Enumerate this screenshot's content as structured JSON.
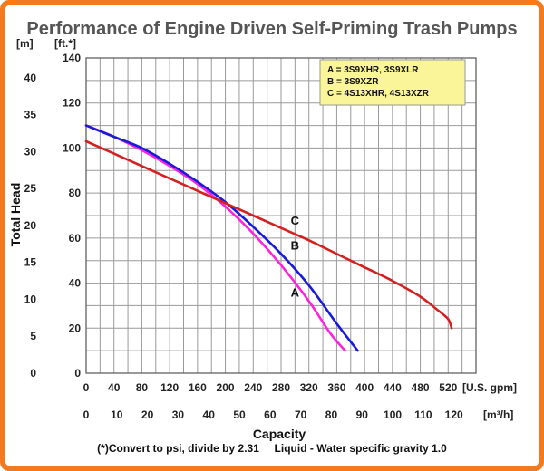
{
  "chart_data": {
    "type": "line",
    "title": "Performance of Engine Driven Self-Priming Trash Pumps",
    "ylabel": "Total Head",
    "xlabel": "Capacity",
    "y_unit_left": "[m]",
    "y_unit_right": "[ft.*]",
    "x_unit_top": "[U.S. gpm]",
    "x_unit_bottom": "[m³/h]",
    "ylim_ft": [
      0,
      140
    ],
    "yticks_ft": [
      "0",
      "20",
      "40",
      "60",
      "80",
      "100",
      "120",
      "140"
    ],
    "yticks_m": [
      "0",
      "5",
      "10",
      "15",
      "20",
      "25",
      "30",
      "35",
      "40"
    ],
    "xlim_gpm": [
      0,
      560
    ],
    "xticks_gpm": [
      "0",
      "40",
      "80",
      "120",
      "160",
      "200",
      "240",
      "280",
      "320",
      "360",
      "400",
      "440",
      "480",
      "520"
    ],
    "xticks_m3h": [
      "0",
      "10",
      "20",
      "30",
      "40",
      "50",
      "60",
      "70",
      "80",
      "90",
      "100",
      "110",
      "120"
    ],
    "grid": true,
    "legend": {
      "placement": "top-right",
      "entries": [
        "A = 3S9XHR, 3S9XLR",
        "B = 3S9XZR",
        "C = 4S13XHR, 4S13XZR"
      ]
    },
    "series": [
      {
        "name": "A",
        "color": "#ff22dd",
        "points": [
          [
            0,
            110
          ],
          [
            40,
            105
          ],
          [
            80,
            99
          ],
          [
            120,
            92
          ],
          [
            160,
            84
          ],
          [
            200,
            74
          ],
          [
            240,
            62
          ],
          [
            280,
            48
          ],
          [
            320,
            32
          ],
          [
            350,
            18
          ],
          [
            372,
            10
          ]
        ]
      },
      {
        "name": "B",
        "color": "#1a1adb",
        "points": [
          [
            0,
            110
          ],
          [
            40,
            105
          ],
          [
            80,
            100
          ],
          [
            120,
            93
          ],
          [
            160,
            85
          ],
          [
            200,
            76
          ],
          [
            240,
            65
          ],
          [
            280,
            53
          ],
          [
            320,
            39
          ],
          [
            360,
            22
          ],
          [
            390,
            10
          ]
        ]
      },
      {
        "name": "C",
        "color": "#d42020",
        "points": [
          [
            0,
            103
          ],
          [
            40,
            97.5
          ],
          [
            80,
            92
          ],
          [
            120,
            86.5
          ],
          [
            160,
            81
          ],
          [
            200,
            75.5
          ],
          [
            240,
            70
          ],
          [
            280,
            64.5
          ],
          [
            320,
            59
          ],
          [
            360,
            53
          ],
          [
            400,
            47
          ],
          [
            440,
            41
          ],
          [
            480,
            34
          ],
          [
            505,
            28
          ],
          [
            520,
            24
          ],
          [
            525,
            20
          ]
        ]
      }
    ],
    "curve_labels": [
      {
        "series": "C",
        "text": "C",
        "x": 300,
        "y": 66
      },
      {
        "series": "B",
        "text": "B",
        "x": 300,
        "y": 55
      },
      {
        "series": "A",
        "text": "A",
        "x": 300,
        "y": 34
      }
    ]
  },
  "footnote": "(*)Convert to psi, divide by 2.31     Liquid - Water specific gravity 1.0"
}
